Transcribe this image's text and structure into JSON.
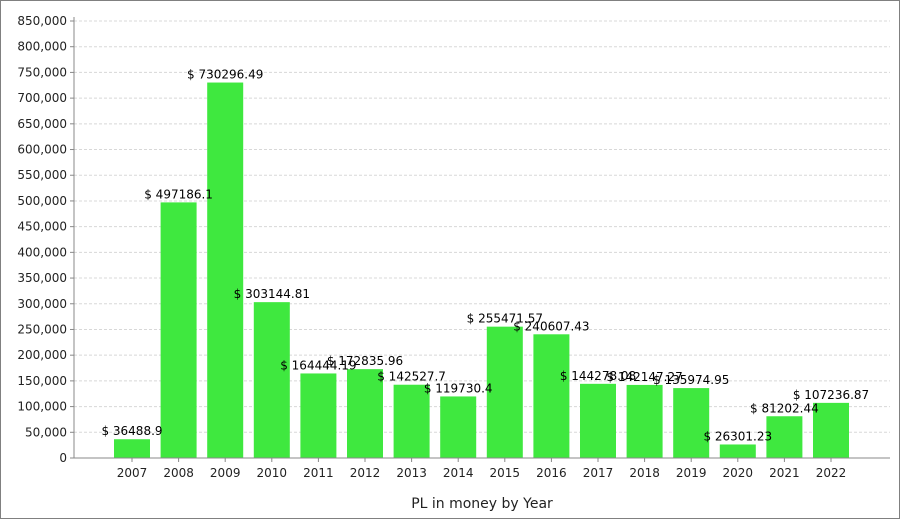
{
  "chart_data": {
    "type": "bar",
    "categories": [
      "2007",
      "2008",
      "2009",
      "2010",
      "2011",
      "2012",
      "2013",
      "2014",
      "2015",
      "2016",
      "2017",
      "2018",
      "2019",
      "2020",
      "2021",
      "2022"
    ],
    "values": [
      36488.9,
      497186.1,
      730296.49,
      303144.81,
      164444.19,
      172835.96,
      142527.7,
      119730.4,
      255471.57,
      240607.43,
      144278.08,
      142147.27,
      135974.95,
      26301.23,
      81202.44,
      107236.87
    ],
    "data_labels": [
      "$ 36488.9",
      "$ 497186.1",
      "$ 730296.49",
      "$ 303144.81",
      "$ 164444.19",
      "$ 172835.96",
      "$ 142527.7",
      "$ 119730.4",
      "$ 255471.57",
      "$ 240607.43",
      "$ 144278.08",
      "$ 142147.27",
      "$ 135974.95",
      "$ 26301.23",
      "$ 81202.44",
      "$ 107236.87"
    ],
    "xlabel": "PL in money by Year",
    "ylabel": "",
    "ylim": [
      0,
      850000
    ],
    "yticks": [
      "0",
      "50,000",
      "100,000",
      "150,000",
      "200,000",
      "250,000",
      "300,000",
      "350,000",
      "400,000",
      "450,000",
      "500,000",
      "550,000",
      "600,000",
      "650,000",
      "700,000",
      "750,000",
      "800,000",
      "850,000"
    ],
    "grid": true,
    "colors": {
      "bar": "#3fe83f",
      "grid": "#d8d8d8",
      "axis": "#888888"
    }
  }
}
